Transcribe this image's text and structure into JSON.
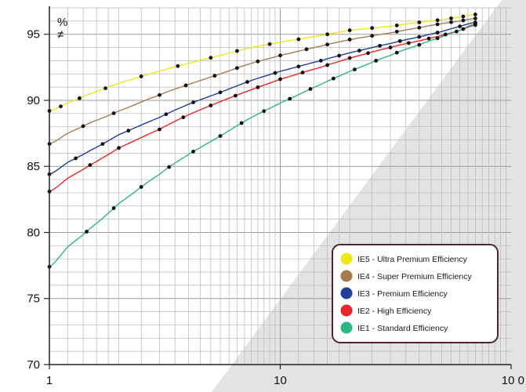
{
  "chart_data": {
    "type": "line",
    "xscale": "log",
    "xlim": [
      1,
      100
    ],
    "ylim": [
      70,
      97
    ],
    "grid": true,
    "legend_position": "bottom-right",
    "ylabel": "%",
    "ylabel_symbol": "≠",
    "x_ticks": [
      {
        "value": 1,
        "label": "1"
      },
      {
        "value": 10,
        "label": "10"
      },
      {
        "value": 100,
        "label": "10 0"
      }
    ],
    "y_ticks": [
      70,
      75,
      80,
      85,
      90,
      95
    ],
    "series": [
      {
        "name": "IE5 - Ultra Premium Efficiency",
        "color": "#f0e61c",
        "x": [
          1,
          1.2,
          1.5,
          2,
          3,
          4,
          5.5,
          7.5,
          10,
          15,
          20,
          30,
          40,
          50,
          60,
          70
        ],
        "y": [
          89.2,
          89.8,
          90.5,
          91.3,
          92.2,
          92.8,
          93.4,
          94.0,
          94.4,
          94.9,
          95.3,
          95.6,
          95.9,
          96.1,
          96.3,
          96.5
        ]
      },
      {
        "name": "IE4 - Super Premium Efficiency",
        "color": "#a67c52",
        "x": [
          1,
          1.2,
          1.5,
          2,
          3,
          4,
          5.5,
          7.5,
          10,
          15,
          20,
          30,
          40,
          50,
          60,
          70
        ],
        "y": [
          86.7,
          87.5,
          88.3,
          89.2,
          90.4,
          91.2,
          92.0,
          92.8,
          93.4,
          94.1,
          94.6,
          95.1,
          95.5,
          95.8,
          96.0,
          96.2
        ]
      },
      {
        "name": "IE3 - Premium Efficiency",
        "color": "#1f3f9a",
        "x": [
          1,
          1.2,
          1.5,
          2,
          3,
          4,
          5.5,
          7.5,
          10,
          15,
          20,
          30,
          40,
          50,
          60,
          70
        ],
        "y": [
          84.4,
          85.3,
          86.2,
          87.4,
          88.7,
          89.7,
          90.6,
          91.5,
          92.2,
          93.0,
          93.6,
          94.3,
          94.8,
          95.2,
          95.6,
          95.9
        ]
      },
      {
        "name": "IE2 - High Efficiency",
        "color": "#e8262d",
        "x": [
          1,
          1.2,
          1.5,
          2,
          3,
          4,
          5.5,
          7.5,
          10,
          15,
          20,
          30,
          40,
          50,
          60,
          70
        ],
        "y": [
          83.1,
          84.1,
          85.1,
          86.4,
          87.8,
          88.9,
          89.9,
          90.8,
          91.6,
          92.5,
          93.2,
          94.0,
          94.5,
          94.9,
          95.3,
          95.7
        ]
      },
      {
        "name": "IE1 - Standard Efficiency",
        "color": "#2db784",
        "x": [
          1,
          1.2,
          1.5,
          2,
          3,
          4,
          5.5,
          7.5,
          10,
          15,
          20,
          30,
          40,
          50,
          60,
          70
        ],
        "y": [
          77.4,
          78.9,
          80.3,
          82.2,
          84.4,
          85.9,
          87.3,
          88.7,
          89.8,
          91.2,
          92.2,
          93.4,
          94.2,
          94.8,
          95.3,
          95.8
        ]
      }
    ],
    "points": [
      {
        "series": 0,
        "x": [
          1,
          1.12,
          1.35,
          1.75,
          2.5,
          3.6,
          5,
          6.5,
          9,
          12,
          16,
          20,
          25,
          32,
          40,
          48,
          55,
          62,
          70
        ]
      },
      {
        "series": 1,
        "x": [
          1,
          1.4,
          1.9,
          3,
          3.9,
          5.2,
          6.5,
          8,
          10,
          13,
          16,
          20,
          25,
          32,
          40,
          48,
          55,
          62,
          70
        ]
      },
      {
        "series": 2,
        "x": [
          1,
          1.3,
          1.7,
          2.2,
          3.2,
          4.2,
          5.5,
          7.2,
          9.5,
          12,
          15,
          18,
          22,
          27,
          33,
          40,
          48,
          60,
          70
        ]
      },
      {
        "series": 3,
        "x": [
          1,
          1.5,
          2,
          3,
          3.8,
          5,
          6.4,
          8,
          10,
          12.5,
          16,
          20,
          24,
          30,
          36,
          44,
          52,
          62,
          70
        ]
      },
      {
        "series": 4,
        "x": [
          1,
          1.45,
          1.9,
          2.5,
          3.3,
          4.2,
          5.5,
          6.8,
          8.5,
          11,
          13.5,
          17,
          21,
          26,
          32,
          40,
          48,
          58,
          70
        ]
      }
    ]
  }
}
